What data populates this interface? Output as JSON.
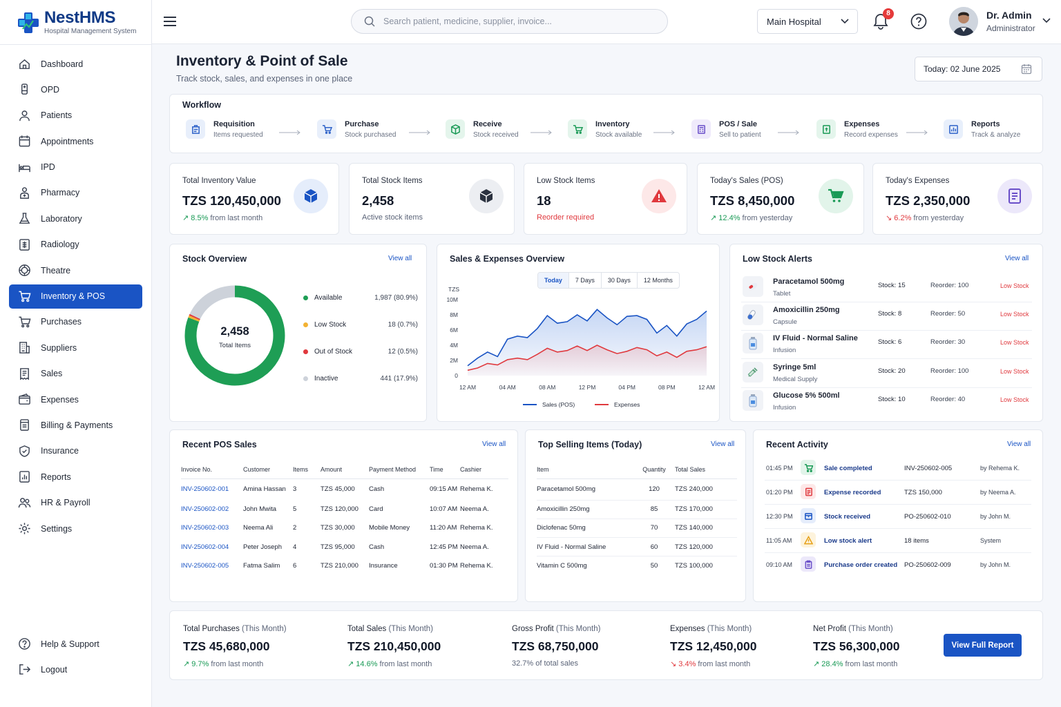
{
  "brand": {
    "name": "NestHMS",
    "tagline": "Hospital Management System"
  },
  "sidebar": {
    "items": [
      {
        "label": "Dashboard",
        "icon": "home-icon"
      },
      {
        "label": "OPD",
        "icon": "stethoscope-icon"
      },
      {
        "label": "Patients",
        "icon": "user-icon"
      },
      {
        "label": "Appointments",
        "icon": "calendar-icon"
      },
      {
        "label": "IPD",
        "icon": "bed-icon"
      },
      {
        "label": "Pharmacy",
        "icon": "pharmacy-icon"
      },
      {
        "label": "Laboratory",
        "icon": "flask-icon"
      },
      {
        "label": "Radiology",
        "icon": "xray-icon"
      },
      {
        "label": "Theatre",
        "icon": "theatre-icon"
      },
      {
        "label": "Inventory & POS",
        "icon": "cart-icon",
        "active": true
      },
      {
        "label": "Purchases",
        "icon": "cart-icon"
      },
      {
        "label": "Suppliers",
        "icon": "building-icon"
      },
      {
        "label": "Sales",
        "icon": "receipt-icon"
      },
      {
        "label": "Expenses",
        "icon": "wallet-icon"
      },
      {
        "label": "Billing & Payments",
        "icon": "invoice-icon"
      },
      {
        "label": "Insurance",
        "icon": "shield-icon"
      },
      {
        "label": "Reports",
        "icon": "report-icon"
      },
      {
        "label": "HR & Payroll",
        "icon": "people-icon"
      },
      {
        "label": "Settings",
        "icon": "gear-icon"
      }
    ],
    "bottom": [
      {
        "label": "Help & Support",
        "icon": "help-icon"
      },
      {
        "label": "Logout",
        "icon": "logout-icon"
      }
    ]
  },
  "header": {
    "search_placeholder": "Search patient, medicine, supplier, invoice...",
    "hospital": "Main Hospital",
    "notifications": "8",
    "user_name": "Dr. Admin",
    "user_role": "Administrator"
  },
  "page": {
    "title": "Inventory & Point of Sale",
    "subtitle": "Track stock, sales, and expenses in one place",
    "date": "Today: 02 June 2025"
  },
  "workflow": {
    "title": "Workflow",
    "steps": [
      {
        "name": "Requisition",
        "desc": "Items requested",
        "color": "#2f63c9",
        "bg": "#e8effb"
      },
      {
        "name": "Purchase",
        "desc": "Stock purchased",
        "color": "#2f63c9",
        "bg": "#e8effb"
      },
      {
        "name": "Receive",
        "desc": "Stock received",
        "color": "#1a9a56",
        "bg": "#e4f5ec"
      },
      {
        "name": "Inventory",
        "desc": "Stock available",
        "color": "#1a9a56",
        "bg": "#e4f5ec"
      },
      {
        "name": "POS / Sale",
        "desc": "Sell to patient",
        "color": "#6a4fc9",
        "bg": "#efeafb"
      },
      {
        "name": "Expenses",
        "desc": "Record expenses",
        "color": "#1a9a56",
        "bg": "#e4f5ec"
      },
      {
        "name": "Reports",
        "desc": "Track & analyze",
        "color": "#2f63c9",
        "bg": "#e8effb"
      }
    ]
  },
  "stats": [
    {
      "label": "Total Inventory Value",
      "value": "TZS 120,450,000",
      "trend": "8.5%",
      "trend_text": "from last month",
      "dir": "up",
      "icon": "box-icon",
      "icon_color": "#1a54c4",
      "icon_bg": "#e5edfb"
    },
    {
      "label": "Total Stock Items",
      "value": "2,458",
      "foot": "Active stock items",
      "icon": "cube-icon",
      "icon_color": "#2b3240",
      "icon_bg": "#eceef2"
    },
    {
      "label": "Low Stock Items",
      "value": "18",
      "foot": "Reorder required",
      "icon": "warning-icon",
      "icon_color": "#e0393e",
      "icon_bg": "#fde8e8"
    },
    {
      "label": "Today's Sales (POS)",
      "value": "TZS 8,450,000",
      "trend": "12.4%",
      "trend_text": "from yesterday",
      "dir": "up",
      "icon": "cart-icon",
      "icon_color": "#1a9a56",
      "icon_bg": "#e2f4ea"
    },
    {
      "label": "Today's Expenses",
      "value": "TZS 2,350,000",
      "trend": "6.2%",
      "trend_text": "from yesterday",
      "dir": "down",
      "icon": "document-icon",
      "icon_color": "#6a4fc9",
      "icon_bg": "#ece8fa"
    }
  ],
  "stock_overview": {
    "title": "Stock Overview",
    "view_all": "View all",
    "total": "2,458",
    "total_label": "Total Items",
    "segments": [
      {
        "label": "Available",
        "count": "1,987",
        "pct": "(80.9%)",
        "value": 80.9,
        "color": "#1e9e55"
      },
      {
        "label": "Low Stock",
        "count": "18",
        "pct": "(0.7%)",
        "value": 0.7,
        "color": "#f3b233"
      },
      {
        "label": "Out of Stock",
        "count": "12",
        "pct": "(0.5%)",
        "value": 0.5,
        "color": "#e0393e"
      },
      {
        "label": "Inactive",
        "count": "441",
        "pct": "(17.9%)",
        "value": 17.9,
        "color": "#cdd2da"
      }
    ]
  },
  "chart_data": {
    "type": "area",
    "title": "Sales & Expenses Overview",
    "tabs": [
      "Today",
      "7 Days",
      "30 Days",
      "12 Months"
    ],
    "active_tab": "Today",
    "ylabel_unit": "TZS",
    "y_ticks": [
      "10M",
      "8M",
      "6M",
      "4M",
      "2M",
      "0"
    ],
    "ylim": [
      0,
      10
    ],
    "x_ticks": [
      "12 AM",
      "04 AM",
      "08 AM",
      "12 PM",
      "04 PM",
      "08 PM",
      "12 AM"
    ],
    "x_hours": [
      0,
      1,
      2,
      3,
      4,
      5,
      6,
      7,
      8,
      9,
      10,
      11,
      12,
      13,
      14,
      15,
      16,
      17,
      18,
      19,
      20,
      21,
      22,
      23,
      24
    ],
    "series": [
      {
        "name": "Sales (POS)",
        "color": "#1a54c4",
        "values": [
          1.3,
          2.3,
          3.1,
          2.5,
          4.8,
          5.2,
          5.0,
          6.2,
          7.9,
          6.9,
          7.1,
          8.0,
          7.2,
          8.7,
          7.6,
          6.7,
          7.8,
          7.9,
          7.4,
          5.6,
          6.6,
          5.2,
          6.8,
          7.4,
          8.5
        ]
      },
      {
        "name": "Expenses",
        "color": "#e0393e",
        "values": [
          0.7,
          1.0,
          1.6,
          1.4,
          2.1,
          2.3,
          2.1,
          2.8,
          3.6,
          3.1,
          3.3,
          3.9,
          3.3,
          4.0,
          3.4,
          2.9,
          3.2,
          3.7,
          3.4,
          2.6,
          3.1,
          2.4,
          3.2,
          3.4,
          3.8
        ]
      }
    ]
  },
  "low_stock": {
    "title": "Low Stock Alerts",
    "view_all": "View all",
    "items": [
      {
        "name": "Paracetamol 500mg",
        "type": "Tablet",
        "stock": "Stock:  15",
        "reorder": "Reorder:  100",
        "status": "Low Stock",
        "icon": "pill-icon"
      },
      {
        "name": "Amoxicillin 250mg",
        "type": "Capsule",
        "stock": "Stock:  8",
        "reorder": "Reorder:  50",
        "status": "Low Stock",
        "icon": "capsule-icon"
      },
      {
        "name": "IV Fluid - Normal Saline",
        "type": "Infusion",
        "stock": "Stock:  6",
        "reorder": "Reorder:  30",
        "status": "Low Stock",
        "icon": "bottle-icon"
      },
      {
        "name": "Syringe 5ml",
        "type": "Medical Supply",
        "stock": "Stock:  20",
        "reorder": "Reorder:  100",
        "status": "Low Stock",
        "icon": "syringe-icon"
      },
      {
        "name": "Glucose 5% 500ml",
        "type": "Infusion",
        "stock": "Stock:  10",
        "reorder": "Reorder:  40",
        "status": "Low Stock",
        "icon": "bottle-icon"
      }
    ]
  },
  "pos_sales": {
    "title": "Recent POS Sales",
    "view_all": "View all",
    "headers": [
      "Invoice No.",
      "Customer",
      "Items",
      "Amount",
      "Payment Method",
      "Time",
      "Cashier"
    ],
    "rows": [
      [
        "INV-250602-001",
        "Amina Hassan",
        "3",
        "TZS 45,000",
        "Cash",
        "09:15 AM",
        "Rehema K."
      ],
      [
        "INV-250602-002",
        "John Mwita",
        "5",
        "TZS 120,000",
        "Card",
        "10:07 AM",
        "Neema A."
      ],
      [
        "INV-250602-003",
        "Neema Ali",
        "2",
        "TZS 30,000",
        "Mobile Money",
        "11:20 AM",
        "Rehema K."
      ],
      [
        "INV-250602-004",
        "Peter Joseph",
        "4",
        "TZS 95,000",
        "Cash",
        "12:45 PM",
        "Neema A."
      ],
      [
        "INV-250602-005",
        "Fatma Salim",
        "6",
        "TZS 210,000",
        "Insurance",
        "01:30 PM",
        "Rehema K."
      ]
    ]
  },
  "top_selling": {
    "title": "Top Selling Items (Today)",
    "view_all": "View all",
    "headers": [
      "Item",
      "Quantity",
      "Total Sales"
    ],
    "rows": [
      [
        "Paracetamol 500mg",
        "120",
        "TZS 240,000"
      ],
      [
        "Amoxicillin 250mg",
        "85",
        "TZS 170,000"
      ],
      [
        "Diclofenac 50mg",
        "70",
        "TZS 140,000"
      ],
      [
        "IV Fluid - Normal Saline",
        "60",
        "TZS 120,000"
      ],
      [
        "Vitamin C 500mg",
        "50",
        "TZS 100,000"
      ]
    ]
  },
  "activity": {
    "title": "Recent Activity",
    "view_all": "View all",
    "items": [
      {
        "time": "01:45 PM",
        "title": "Sale completed",
        "ref": "INV-250602-005",
        "by": "by Rehema K.",
        "icon": "cart-icon",
        "color": "#1a9a56",
        "bg": "#e2f4ea"
      },
      {
        "time": "01:20 PM",
        "title": "Expense recorded",
        "ref": "TZS 150,000",
        "by": "by Neema A.",
        "icon": "document-icon",
        "color": "#e0393e",
        "bg": "#fde8e8"
      },
      {
        "time": "12:30 PM",
        "title": "Stock received",
        "ref": "PO-250602-010",
        "by": "by John M.",
        "icon": "box-icon",
        "color": "#1a54c4",
        "bg": "#e5edfb"
      },
      {
        "time": "11:05 AM",
        "title": "Low stock alert",
        "ref": "18 items",
        "by": "System",
        "icon": "warning-icon",
        "color": "#e6a017",
        "bg": "#fdf3dc"
      },
      {
        "time": "09:10 AM",
        "title": "Purchase order created",
        "ref": "PO-250602-009",
        "by": "by John M.",
        "icon": "clipboard-icon",
        "color": "#6a4fc9",
        "bg": "#ece8fa"
      }
    ]
  },
  "summary": {
    "items": [
      {
        "label": "Total Purchases",
        "period": "(This Month)",
        "value": "TZS 45,680,000",
        "trend": "9.7%",
        "trend_text": "from last month",
        "dir": "up"
      },
      {
        "label": "Total Sales",
        "period": "(This Month)",
        "value": "TZS 210,450,000",
        "trend": "14.6%",
        "trend_text": "from last month",
        "dir": "up"
      },
      {
        "label": "Gross Profit",
        "period": "(This Month)",
        "value": "TZS 68,750,000",
        "foot": "32.7% of total sales"
      },
      {
        "label": "Expenses",
        "period": "(This Month)",
        "value": "TZS 12,450,000",
        "trend": "3.4%",
        "trend_text": "from last month",
        "dir": "down"
      },
      {
        "label": "Net Profit",
        "period": "(This Month)",
        "value": "TZS 56,300,000",
        "trend": "28.4%",
        "trend_text": "from last month",
        "dir": "up"
      }
    ],
    "button": "View Full Report"
  }
}
